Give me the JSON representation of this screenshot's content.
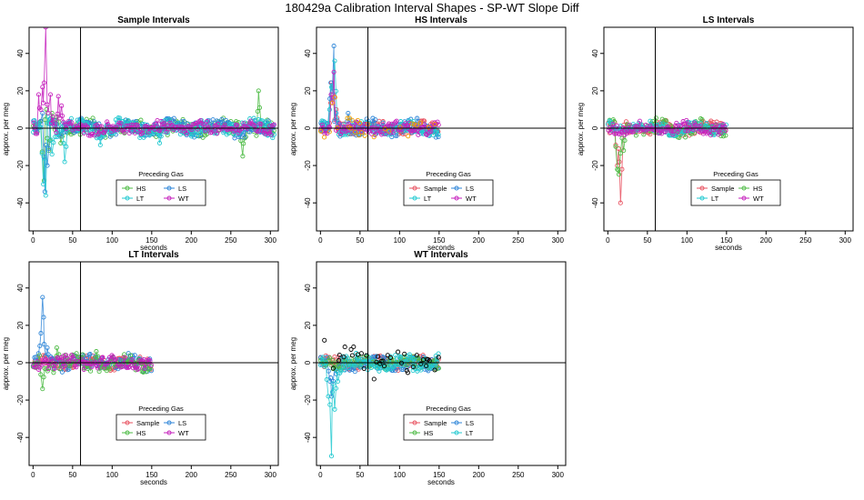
{
  "title": "180429a   Calibration Interval Shapes - SP-WT Slope Diff",
  "colors": {
    "Sample": "#e8505f",
    "HS": "#4dbb45",
    "LS": "#2f86d8",
    "LT": "#21c9d0",
    "WT": "#c621bd",
    "black": "#000000"
  },
  "chart_data": [
    {
      "type": "scatter",
      "title": "Sample Intervals",
      "xlabel": "seconds",
      "ylabel": "approx. per meg",
      "xlim": [
        -5,
        310
      ],
      "ylim": [
        -55,
        54
      ],
      "xticks": [
        0,
        50,
        100,
        150,
        200,
        250,
        300
      ],
      "yticks": [
        -40,
        -20,
        0,
        20,
        40
      ],
      "vline": 60,
      "hline": 0,
      "legend": {
        "title": "Preceding Gas",
        "entries": [
          "HS",
          "LS",
          "LT",
          "WT"
        ],
        "placement": "bottom-center"
      },
      "series": [
        {
          "name": "HS",
          "color": "#4dbb45",
          "xmax": 305,
          "spread": 4,
          "spikes": [
            [
              14,
              -28
            ],
            [
              17,
              10
            ],
            [
              20,
              -12
            ],
            [
              24,
              8
            ],
            [
              30,
              6
            ],
            [
              35,
              -8
            ],
            [
              265,
              -15
            ],
            [
              285,
              20
            ]
          ]
        },
        {
          "name": "LS",
          "color": "#2f86d8",
          "xmax": 305,
          "spread": 4,
          "spikes": [
            [
              12,
              8
            ],
            [
              15,
              -34
            ],
            [
              18,
              -20
            ],
            [
              22,
              5
            ],
            [
              28,
              4
            ]
          ]
        },
        {
          "name": "LT",
          "color": "#21c9d0",
          "xmax": 305,
          "spread": 4,
          "spikes": [
            [
              13,
              -30
            ],
            [
              16,
              -36
            ],
            [
              19,
              6
            ],
            [
              24,
              -14
            ],
            [
              40,
              -18
            ],
            [
              85,
              -9
            ],
            [
              160,
              -8
            ]
          ]
        },
        {
          "name": "WT",
          "color": "#c621bd",
          "xmax": 305,
          "spread": 3,
          "spikes": [
            [
              8,
              40
            ],
            [
              10,
              24
            ],
            [
              12,
              22
            ],
            [
              14,
              30
            ],
            [
              16,
              54
            ],
            [
              19,
              28
            ],
            [
              22,
              18
            ],
            [
              25,
              6
            ],
            [
              32,
              17
            ],
            [
              36,
              12
            ]
          ]
        }
      ]
    },
    {
      "type": "scatter",
      "title": "HS Intervals",
      "xlabel": "seconds",
      "ylabel": "approx. per meg",
      "xlim": [
        -5,
        310
      ],
      "ylim": [
        -55,
        54
      ],
      "xticks": [
        0,
        50,
        100,
        150,
        200,
        250,
        300
      ],
      "yticks": [
        -40,
        -20,
        0,
        20,
        40
      ],
      "vline": 60,
      "hline": 0,
      "legend": {
        "title": "Preceding Gas",
        "entries": [
          "Sample",
          "LS",
          "LT",
          "WT"
        ],
        "placement": "bottom-center"
      },
      "series": [
        {
          "name": "Sample",
          "color": "#e8505f",
          "xmax": 150,
          "spread": 3,
          "spikes": [
            [
              14,
              30
            ],
            [
              16,
              54
            ],
            [
              18,
              40
            ],
            [
              20,
              10
            ]
          ]
        },
        {
          "name": "LS",
          "color": "#2f86d8",
          "xmax": 150,
          "spread": 4,
          "spikes": [
            [
              13,
              35
            ],
            [
              15,
              54
            ],
            [
              17,
              44
            ],
            [
              20,
              8
            ],
            [
              35,
              8
            ]
          ]
        },
        {
          "name": "LT",
          "color": "#21c9d0",
          "xmax": 150,
          "spread": 3,
          "spikes": [
            [
              14,
              22
            ],
            [
              16,
              50
            ],
            [
              18,
              36
            ]
          ]
        },
        {
          "name": "WT",
          "color": "#c621bd",
          "xmax": 150,
          "spread": 3,
          "spikes": [
            [
              15,
              40
            ],
            [
              17,
              30
            ]
          ]
        },
        {
          "name": "",
          "color": "#f0a000",
          "xmax": 150,
          "spread": 4,
          "spikes": [
            [
              16,
              30
            ]
          ]
        }
      ]
    },
    {
      "type": "scatter",
      "title": "LS Intervals",
      "xlabel": "seconds",
      "ylabel": "approx. per meg",
      "xlim": [
        -5,
        310
      ],
      "ylim": [
        -55,
        54
      ],
      "xticks": [
        0,
        50,
        100,
        150,
        200,
        250,
        300
      ],
      "yticks": [
        -40,
        -20,
        0,
        20,
        40
      ],
      "vline": 60,
      "hline": 0,
      "legend": {
        "title": "Preceding Gas",
        "entries": [
          "Sample",
          "HS",
          "LT",
          "WT"
        ],
        "placement": "bottom-center"
      },
      "series": [
        {
          "name": "Sample",
          "color": "#e8505f",
          "xmax": 150,
          "spread": 3,
          "spikes": [
            [
              12,
              -20
            ],
            [
              16,
              -40
            ]
          ]
        },
        {
          "name": "HS",
          "color": "#4dbb45",
          "xmax": 150,
          "spread": 4,
          "spikes": [
            [
              8,
              10
            ],
            [
              10,
              8
            ],
            [
              12,
              -22
            ],
            [
              14,
              -50
            ],
            [
              16,
              -55
            ],
            [
              18,
              -30
            ],
            [
              20,
              -12
            ]
          ]
        },
        {
          "name": "LT",
          "color": "#21c9d0",
          "xmax": 150,
          "spread": 3,
          "spikes": []
        },
        {
          "name": "WT",
          "color": "#c621bd",
          "xmax": 150,
          "spread": 3,
          "spikes": []
        }
      ]
    },
    {
      "type": "scatter",
      "title": "LT Intervals",
      "xlabel": "seconds",
      "ylabel": "approx. per meg",
      "xlim": [
        -5,
        310
      ],
      "ylim": [
        -55,
        54
      ],
      "xticks": [
        0,
        50,
        100,
        150,
        200,
        250,
        300
      ],
      "yticks": [
        -40,
        -20,
        0,
        20,
        40
      ],
      "vline": 60,
      "hline": 0,
      "legend": {
        "title": "Preceding Gas",
        "entries": [
          "Sample",
          "LS",
          "HS",
          "WT"
        ],
        "placement": "bottom-center"
      },
      "series": [
        {
          "name": "Sample",
          "color": "#e8505f",
          "xmax": 150,
          "spread": 3,
          "spikes": []
        },
        {
          "name": "LS",
          "color": "#2f86d8",
          "xmax": 150,
          "spread": 4,
          "spikes": [
            [
              10,
              20
            ],
            [
              12,
              35
            ],
            [
              14,
              54
            ],
            [
              16,
              22
            ],
            [
              18,
              8
            ]
          ]
        },
        {
          "name": "HS",
          "color": "#4dbb45",
          "xmax": 150,
          "spread": 4,
          "spikes": [
            [
              12,
              -14
            ],
            [
              30,
              8
            ],
            [
              80,
              6
            ]
          ]
        },
        {
          "name": "WT",
          "color": "#c621bd",
          "xmax": 150,
          "spread": 3,
          "spikes": []
        }
      ]
    },
    {
      "type": "scatter",
      "title": "WT Intervals",
      "xlabel": "seconds",
      "ylabel": "approx. per meg",
      "xlim": [
        -5,
        310
      ],
      "ylim": [
        -55,
        54
      ],
      "xticks": [
        0,
        50,
        100,
        150,
        200,
        250,
        300
      ],
      "yticks": [
        -40,
        -20,
        0,
        20,
        40
      ],
      "vline": 60,
      "hline": 0,
      "legend": {
        "title": "Preceding Gas",
        "entries": [
          "Sample",
          "LS",
          "HS",
          "LT"
        ],
        "placement": "bottom-center"
      },
      "series": [
        {
          "name": "Sample",
          "color": "#e8505f",
          "xmax": 150,
          "spread": 3,
          "spikes": []
        },
        {
          "name": "LS",
          "color": "#2f86d8",
          "xmax": 150,
          "spread": 4,
          "spikes": [
            [
              12,
              -10
            ],
            [
              14,
              -18
            ],
            [
              20,
              -6
            ]
          ]
        },
        {
          "name": "HS",
          "color": "#4dbb45",
          "xmax": 150,
          "spread": 3,
          "spikes": []
        },
        {
          "name": "LT",
          "color": "#21c9d0",
          "xmax": 150,
          "spread": 4,
          "spikes": [
            [
              10,
              -20
            ],
            [
              12,
              -40
            ],
            [
              14,
              -50
            ],
            [
              16,
              -35
            ],
            [
              18,
              -25
            ],
            [
              22,
              -10
            ]
          ]
        },
        {
          "name": "",
          "color": "#000000",
          "xmax": 150,
          "spread": 7,
          "spikes": [
            [
              2,
              10
            ],
            [
              5,
              12
            ],
            [
              35,
              4
            ],
            [
              45,
              8
            ],
            [
              50,
              9
            ],
            [
              85,
              4
            ],
            [
              90,
              6
            ],
            [
              115,
              -4
            ]
          ]
        }
      ]
    }
  ]
}
